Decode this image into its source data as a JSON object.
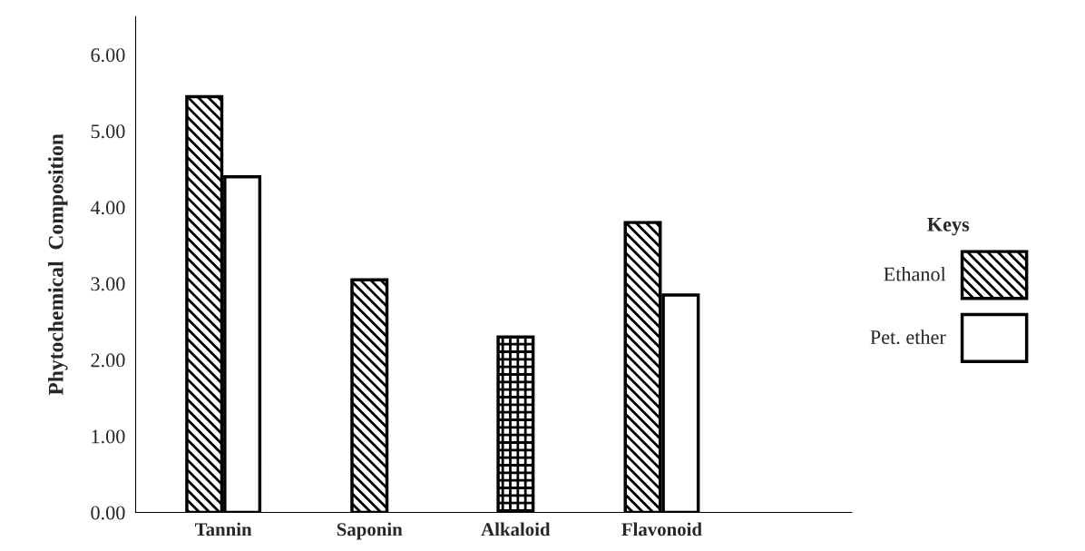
{
  "chart_data": {
    "type": "bar",
    "ylabel": "Phytochemical  Composition",
    "legend_title": "Keys",
    "categories": [
      "Tannin",
      "Saponin",
      "Alkaloid",
      "Flavonoid"
    ],
    "series": [
      {
        "name": "Ethanol",
        "color": "#000000",
        "values": [
          5.45,
          3.05,
          null,
          3.8
        ]
      },
      {
        "name": "Pet. ether",
        "color": "#000000",
        "values": [
          4.4,
          null,
          null,
          2.85
        ]
      },
      {
        "color": "#000000",
        "values": [
          null,
          null,
          2.3,
          null
        ]
      }
    ],
    "ylim": [
      0,
      6.5
    ],
    "yticks": [
      {
        "value": 0,
        "label": "0.00"
      },
      {
        "value": 1,
        "label": "1.00"
      },
      {
        "value": 2,
        "label": "2.00"
      },
      {
        "value": 3,
        "label": "3.00"
      },
      {
        "value": 4,
        "label": "4.00"
      },
      {
        "value": 5,
        "label": "5.00"
      },
      {
        "value": 6,
        "label": "6.00"
      }
    ],
    "grid": false,
    "legend": "right"
  }
}
